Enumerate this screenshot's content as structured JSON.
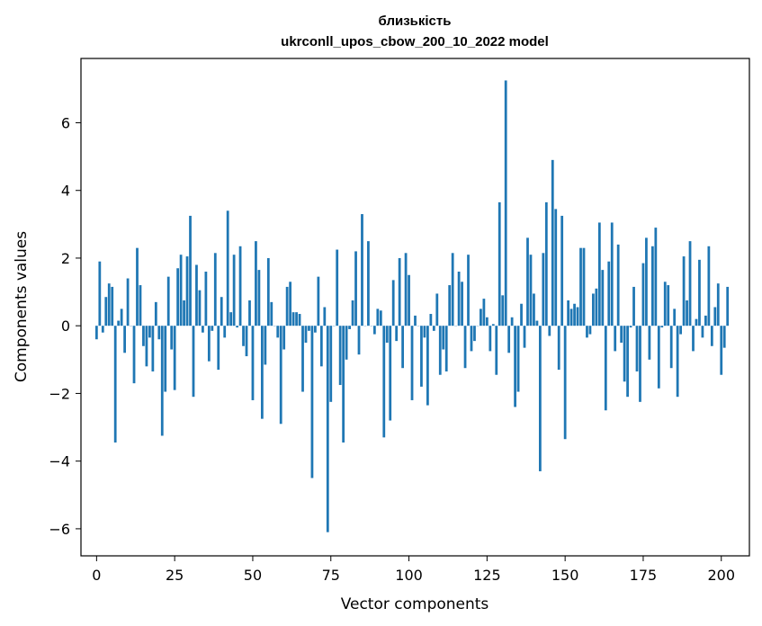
{
  "chart_data": {
    "type": "bar",
    "title": "близькість",
    "subtitle": "ukrconll_upos_cbow_200_10_2022 model",
    "xlabel": "Vector components",
    "ylabel": "Components values",
    "xlim": [
      -5,
      209
    ],
    "ylim": [
      -6.8,
      7.9
    ],
    "x_ticks": [
      0,
      25,
      50,
      75,
      100,
      125,
      150,
      175,
      200
    ],
    "y_ticks": [
      -6,
      -4,
      -2,
      0,
      2,
      4,
      6
    ],
    "y_tick_labels": [
      "−6",
      "−4",
      "−2",
      "0",
      "2",
      "4",
      "6"
    ],
    "grid": false,
    "bar_color": "#1f77b4",
    "values": [
      -0.4,
      1.9,
      -0.2,
      0.85,
      1.25,
      1.15,
      -3.45,
      0.15,
      0.5,
      -0.8,
      1.4,
      0.0,
      -1.7,
      2.3,
      1.2,
      -0.6,
      -1.2,
      -0.35,
      -1.35,
      0.7,
      -0.4,
      -3.25,
      -1.95,
      1.45,
      -0.7,
      -1.9,
      1.7,
      2.1,
      0.75,
      2.05,
      3.25,
      -2.1,
      1.8,
      1.05,
      -0.2,
      1.6,
      -1.05,
      -0.15,
      2.15,
      -1.3,
      0.85,
      -0.35,
      3.4,
      0.4,
      2.1,
      -0.05,
      2.35,
      -0.6,
      -0.9,
      0.75,
      -2.2,
      2.5,
      1.65,
      -2.75,
      -1.15,
      2.0,
      0.7,
      0.0,
      -0.35,
      -2.9,
      -0.7,
      1.15,
      1.3,
      0.4,
      0.4,
      0.35,
      -1.95,
      -0.5,
      -0.15,
      -4.5,
      -0.2,
      1.45,
      -1.2,
      0.55,
      -6.1,
      -2.25,
      0.0,
      2.25,
      -1.75,
      -3.45,
      -1.0,
      -0.1,
      0.75,
      2.2,
      -0.85,
      3.3,
      0.0,
      2.5,
      0.0,
      -0.25,
      0.5,
      0.45,
      -3.3,
      -0.5,
      -2.8,
      1.35,
      -0.45,
      2.0,
      -1.25,
      2.15,
      1.5,
      -2.2,
      0.3,
      0.0,
      -1.8,
      -0.35,
      -2.35,
      0.35,
      -0.15,
      0.95,
      -1.45,
      -0.7,
      -1.35,
      1.2,
      2.15,
      0.0,
      1.6,
      1.3,
      -1.25,
      2.1,
      -0.75,
      -0.45,
      0.0,
      0.5,
      0.8,
      0.25,
      -0.75,
      0.05,
      -1.45,
      3.65,
      0.9,
      7.25,
      -0.8,
      0.25,
      -2.4,
      -1.95,
      0.65,
      -0.65,
      2.6,
      2.1,
      0.95,
      0.15,
      -4.3,
      2.15,
      3.65,
      -0.3,
      4.9,
      3.45,
      -1.3,
      3.25,
      -3.35,
      0.75,
      0.5,
      0.65,
      0.55,
      2.3,
      2.3,
      -0.35,
      -0.25,
      0.95,
      1.1,
      3.05,
      1.65,
      -2.5,
      1.9,
      3.05,
      -0.75,
      2.4,
      -0.5,
      -1.65,
      -2.1,
      -0.05,
      1.15,
      -1.35,
      -2.25,
      1.85,
      2.6,
      -1.0,
      2.35,
      2.9,
      -1.85,
      -0.05,
      1.3,
      1.2,
      -1.25,
      0.5,
      -2.1,
      -0.25,
      2.05,
      0.75,
      2.5,
      -0.75,
      0.2,
      1.95,
      -0.35,
      0.3,
      2.35,
      -0.6,
      0.55,
      1.25,
      -1.45,
      -0.65,
      1.15
    ]
  }
}
